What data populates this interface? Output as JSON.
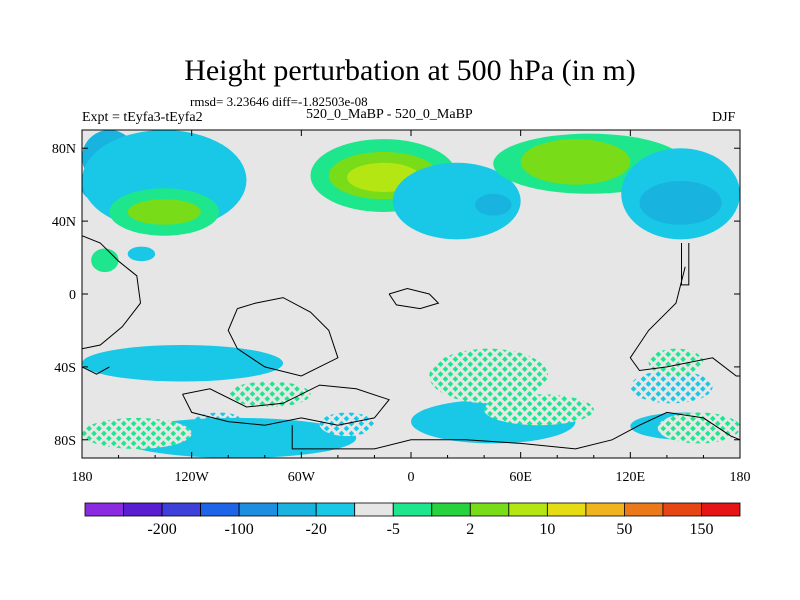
{
  "chart_data": {
    "type": "heatmap",
    "title": "Height perturbation at 500 hPa (in m)",
    "stats_line": "rmsd= 3.23646 diff=-1.82503e-08",
    "left_label": "Expt = tEyfa3-tEyfa2",
    "center_label": "520_0_MaBP - 520_0_MaBP",
    "right_label": "DJF",
    "x_ticks": [
      -180,
      -120,
      -60,
      0,
      60,
      120,
      180
    ],
    "x_tick_labels": [
      "180",
      "120W",
      "60W",
      "0",
      "60E",
      "120E",
      "180"
    ],
    "y_ticks": [
      80,
      40,
      0,
      -40,
      -80
    ],
    "y_tick_labels": [
      "80N",
      "40N",
      "0",
      "40S",
      "80S"
    ],
    "xlim": [
      -180,
      180
    ],
    "ylim": [
      -90,
      90
    ],
    "colorbar": {
      "colors": [
        "#8a2be2",
        "#5a1ed2",
        "#3f3fd9",
        "#1e64e8",
        "#1e8ee0",
        "#19b3e0",
        "#19c8e6",
        "#e6e6e6",
        "#1ee68c",
        "#28d23c",
        "#78dc19",
        "#b4e614",
        "#e6dc14",
        "#f0b41e",
        "#eb7819",
        "#e64614",
        "#e61414"
      ],
      "tick_labels": [
        "-200",
        "-100",
        "-20",
        "-5",
        "2",
        "10",
        "50",
        "150"
      ],
      "label_after_box": [
        1,
        3,
        5,
        7,
        9,
        11,
        13,
        15
      ]
    },
    "fields": [
      {
        "level": -5,
        "lon": [
          -180,
          -100
        ],
        "lat": [
          45,
          70
        ]
      },
      {
        "level": -5,
        "lon": [
          -180,
          -150
        ],
        "lat": [
          60,
          90
        ]
      },
      {
        "level": -2,
        "lon": [
          -180,
          -90
        ],
        "lat": [
          35,
          90
        ]
      },
      {
        "level": 2,
        "lon": [
          -165,
          -105
        ],
        "lat": [
          32,
          58
        ]
      },
      {
        "level": 10,
        "lon": [
          -155,
          -115
        ],
        "lat": [
          38,
          52
        ]
      },
      {
        "level": 2,
        "lon": [
          -55,
          25
        ],
        "lat": [
          45,
          85
        ]
      },
      {
        "level": 10,
        "lon": [
          -45,
          15
        ],
        "lat": [
          52,
          78
        ]
      },
      {
        "level": 20,
        "lon": [
          -35,
          5
        ],
        "lat": [
          56,
          72
        ]
      },
      {
        "level": -2,
        "lon": [
          -10,
          60
        ],
        "lat": [
          30,
          72
        ]
      },
      {
        "level": -5,
        "lon": [
          35,
          55
        ],
        "lat": [
          43,
          55
        ]
      },
      {
        "level": 2,
        "lon": [
          45,
          150
        ],
        "lat": [
          55,
          88
        ]
      },
      {
        "level": 10,
        "lon": [
          60,
          120
        ],
        "lat": [
          60,
          85
        ]
      },
      {
        "level": -2,
        "lon": [
          115,
          180
        ],
        "lat": [
          30,
          80
        ]
      },
      {
        "level": -5,
        "lon": [
          125,
          170
        ],
        "lat": [
          38,
          62
        ]
      },
      {
        "level": 2,
        "lon": [
          -175,
          -160
        ],
        "lat": [
          12,
          25
        ]
      },
      {
        "level": -2,
        "lon": [
          -155,
          -140
        ],
        "lat": [
          18,
          26
        ]
      },
      {
        "level": -2,
        "lon": [
          -180,
          -70
        ],
        "lat": [
          -48,
          -28
        ]
      },
      {
        "level": 2,
        "lon": [
          -100,
          -55
        ],
        "lat": [
          -62,
          -48
        ]
      },
      {
        "level": -2,
        "lon": [
          -120,
          -90
        ],
        "lat": [
          -78,
          -65
        ]
      },
      {
        "level": -2,
        "lon": [
          -160,
          -30
        ],
        "lat": [
          -90,
          -68
        ]
      },
      {
        "level": 2,
        "lon": [
          -180,
          -120
        ],
        "lat": [
          -85,
          -68
        ]
      },
      {
        "level": -2,
        "lon": [
          -50,
          -20
        ],
        "lat": [
          -78,
          -65
        ]
      },
      {
        "level": -2,
        "lon": [
          0,
          90
        ],
        "lat": [
          -82,
          -58
        ]
      },
      {
        "level": 2,
        "lon": [
          10,
          75
        ],
        "lat": [
          -60,
          -30
        ]
      },
      {
        "level": 2,
        "lon": [
          40,
          100
        ],
        "lat": [
          -72,
          -55
        ]
      },
      {
        "level": -2,
        "lon": [
          120,
          180
        ],
        "lat": [
          -80,
          -65
        ]
      },
      {
        "level": 2,
        "lon": [
          135,
          180
        ],
        "lat": [
          -82,
          -65
        ]
      },
      {
        "level": -2,
        "lon": [
          120,
          165
        ],
        "lat": [
          -60,
          -42
        ]
      },
      {
        "level": 2,
        "lon": [
          130,
          160
        ],
        "lat": [
          -45,
          -30
        ]
      }
    ]
  }
}
